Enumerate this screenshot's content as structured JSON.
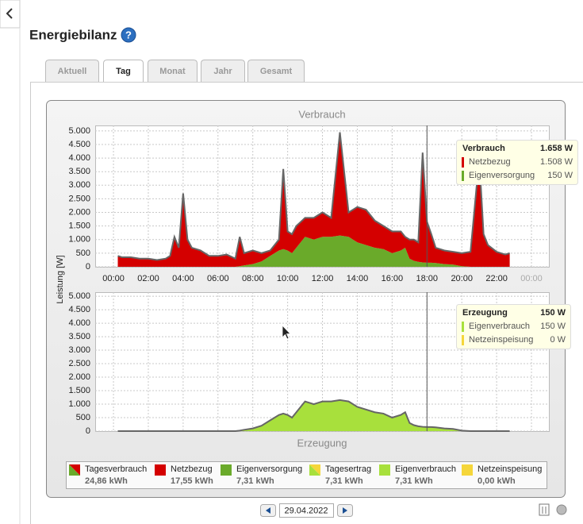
{
  "header": {
    "title": "Energiebilanz"
  },
  "tabs": [
    "Aktuell",
    "Tag",
    "Monat",
    "Jahr",
    "Gesamt"
  ],
  "active_tab": 1,
  "chart_data": [
    {
      "type": "area",
      "stacked": true,
      "title": "Verbrauch",
      "ylabel": "Leistung [W]",
      "grid": true,
      "x": [
        0.25,
        0.5,
        1,
        1.5,
        2,
        2.5,
        3,
        3.25,
        3.5,
        3.75,
        4,
        4.25,
        4.5,
        5,
        5.5,
        6,
        6.5,
        7,
        7.25,
        7.5,
        8,
        8.5,
        9,
        9.5,
        9.75,
        10,
        10.25,
        10.5,
        11,
        11.5,
        12,
        12.5,
        13,
        13.5,
        14,
        14.5,
        15,
        15.5,
        16,
        16.5,
        16.75,
        17,
        17.25,
        17.5,
        17.75,
        18,
        18.25,
        18.5,
        19,
        19.5,
        20,
        20.5,
        21,
        21.25,
        21.5,
        22,
        22.5,
        22.75
      ],
      "xlim": [
        -1.05,
        25
      ],
      "xticks": [
        {
          "value": 0,
          "label": "00:00"
        },
        {
          "value": 2,
          "label": "02:00"
        },
        {
          "value": 4,
          "label": "04:00"
        },
        {
          "value": 6,
          "label": "06:00"
        },
        {
          "value": 8,
          "label": "08:00"
        },
        {
          "value": 10,
          "label": "10:00"
        },
        {
          "value": 12,
          "label": "12:00"
        },
        {
          "value": 14,
          "label": "14:00"
        },
        {
          "value": 16,
          "label": "16:00"
        },
        {
          "value": 18,
          "label": "18:00"
        },
        {
          "value": 20,
          "label": "20:00"
        },
        {
          "value": 22,
          "label": "22:00"
        },
        {
          "value": 24,
          "label": "00:00"
        }
      ],
      "ylim": [
        0,
        5200
      ],
      "yticks": [
        0,
        500,
        {
          "value": 1000,
          "label": "1.000"
        },
        {
          "value": 1500,
          "label": "1.500"
        },
        {
          "value": 2000,
          "label": "2.000"
        },
        {
          "value": 2500,
          "label": "2.500"
        },
        {
          "value": 3000,
          "label": "3.000"
        },
        {
          "value": 3500,
          "label": "3.500"
        },
        {
          "value": 4000,
          "label": "4.000"
        },
        {
          "value": 4500,
          "label": "4.500"
        },
        {
          "value": 5000,
          "label": "5.000"
        }
      ],
      "series": [
        {
          "name": "Eigenversorgung",
          "color": "#6aaa2a",
          "values": [
            0,
            0,
            0,
            0,
            0,
            0,
            0,
            0,
            0,
            0,
            0,
            0,
            0,
            0,
            0,
            0,
            0,
            0,
            20,
            50,
            100,
            200,
            400,
            600,
            650,
            600,
            500,
            700,
            1100,
            1000,
            1100,
            1100,
            1150,
            1100,
            900,
            800,
            700,
            650,
            500,
            600,
            700,
            300,
            220,
            180,
            160,
            150,
            150,
            140,
            100,
            80,
            20,
            0,
            0,
            0,
            0,
            0,
            0,
            0
          ]
        },
        {
          "name": "Netzbezug",
          "color": "#d40000",
          "values": [
            400,
            350,
            350,
            300,
            300,
            250,
            300,
            400,
            1100,
            700,
            2700,
            1000,
            700,
            600,
            400,
            400,
            450,
            300,
            1080,
            450,
            500,
            300,
            200,
            400,
            2950,
            700,
            700,
            800,
            700,
            800,
            900,
            700,
            3800,
            900,
            1300,
            1300,
            1000,
            850,
            800,
            700,
            400,
            700,
            780,
            720,
            4040,
            1508,
            1050,
            560,
            500,
            470,
            480,
            550,
            4000,
            1200,
            800,
            550,
            450,
            500
          ]
        }
      ],
      "cursor_x": 18,
      "tooltip": {
        "title": "Verbrauch",
        "total": "1.658 W",
        "rows": [
          {
            "name": "Netzbezug",
            "value": "1.508 W",
            "color": "#d40000"
          },
          {
            "name": "Eigenversorgung",
            "value": "150 W",
            "color": "#6aaa2a"
          }
        ]
      }
    },
    {
      "type": "area",
      "stacked": true,
      "title": "Erzeugung",
      "grid": true,
      "x": [
        0.25,
        0.5,
        1,
        1.5,
        2,
        2.5,
        3,
        3.25,
        3.5,
        3.75,
        4,
        4.25,
        4.5,
        5,
        5.5,
        6,
        6.5,
        7,
        7.25,
        7.5,
        8,
        8.5,
        9,
        9.5,
        9.75,
        10,
        10.25,
        10.5,
        11,
        11.5,
        12,
        12.5,
        13,
        13.5,
        14,
        14.5,
        15,
        15.5,
        16,
        16.5,
        16.75,
        17,
        17.25,
        17.5,
        17.75,
        18,
        18.25,
        18.5,
        19,
        19.5,
        20,
        20.5,
        21,
        21.25,
        21.5,
        22,
        22.5,
        22.75
      ],
      "xlim": [
        -1.05,
        25
      ],
      "ylim": [
        0,
        5150
      ],
      "yticks": [
        0,
        500,
        {
          "value": 1000,
          "label": "1.000"
        },
        {
          "value": 1500,
          "label": "1.500"
        },
        {
          "value": 2000,
          "label": "2.000"
        },
        {
          "value": 2500,
          "label": "2.500"
        },
        {
          "value": 3000,
          "label": "3.000"
        },
        {
          "value": 3500,
          "label": "3.500"
        },
        {
          "value": 4000,
          "label": "4.000"
        },
        {
          "value": 4500,
          "label": "4.500"
        },
        {
          "value": 5000,
          "label": "5.000"
        }
      ],
      "series": [
        {
          "name": "Eigenverbrauch",
          "color": "#a8e03c",
          "values": [
            0,
            0,
            0,
            0,
            0,
            0,
            0,
            0,
            0,
            0,
            0,
            0,
            0,
            0,
            0,
            0,
            0,
            0,
            20,
            50,
            100,
            200,
            400,
            600,
            650,
            600,
            500,
            700,
            1100,
            1000,
            1100,
            1100,
            1150,
            1100,
            900,
            800,
            700,
            650,
            500,
            600,
            700,
            300,
            220,
            180,
            160,
            150,
            150,
            140,
            100,
            80,
            20,
            0,
            0,
            0,
            0,
            0,
            0,
            0
          ]
        }
      ],
      "cursor_x": 18,
      "tooltip": {
        "title": "Erzeugung",
        "total": "150 W",
        "rows": [
          {
            "name": "Eigenverbrauch",
            "value": "150 W",
            "color": "#a8e03c"
          },
          {
            "name": "Netzeinspeisung",
            "value": "0 W",
            "color": "#f5d63a"
          }
        ]
      }
    }
  ],
  "legend": [
    {
      "name": "Tagesverbrauch",
      "value": "24,86 kWh",
      "colors": [
        "#6aaa2a",
        "#d40000"
      ]
    },
    {
      "name": "Netzbezug",
      "value": "17,55 kWh",
      "colors": [
        "#d40000"
      ]
    },
    {
      "name": "Eigenversorgung",
      "value": "7,31 kWh",
      "colors": [
        "#6aaa2a"
      ]
    },
    {
      "name": "Tagesertrag",
      "value": "7,31 kWh",
      "colors": [
        "#a8e03c",
        "#f5d63a"
      ]
    },
    {
      "name": "Eigenverbrauch",
      "value": "7,31 kWh",
      "colors": [
        "#a8e03c"
      ]
    },
    {
      "name": "Netzeinspeisung",
      "value": "0,00 kWh",
      "colors": [
        "#f5d63a"
      ]
    }
  ],
  "date": "29.04.2022"
}
